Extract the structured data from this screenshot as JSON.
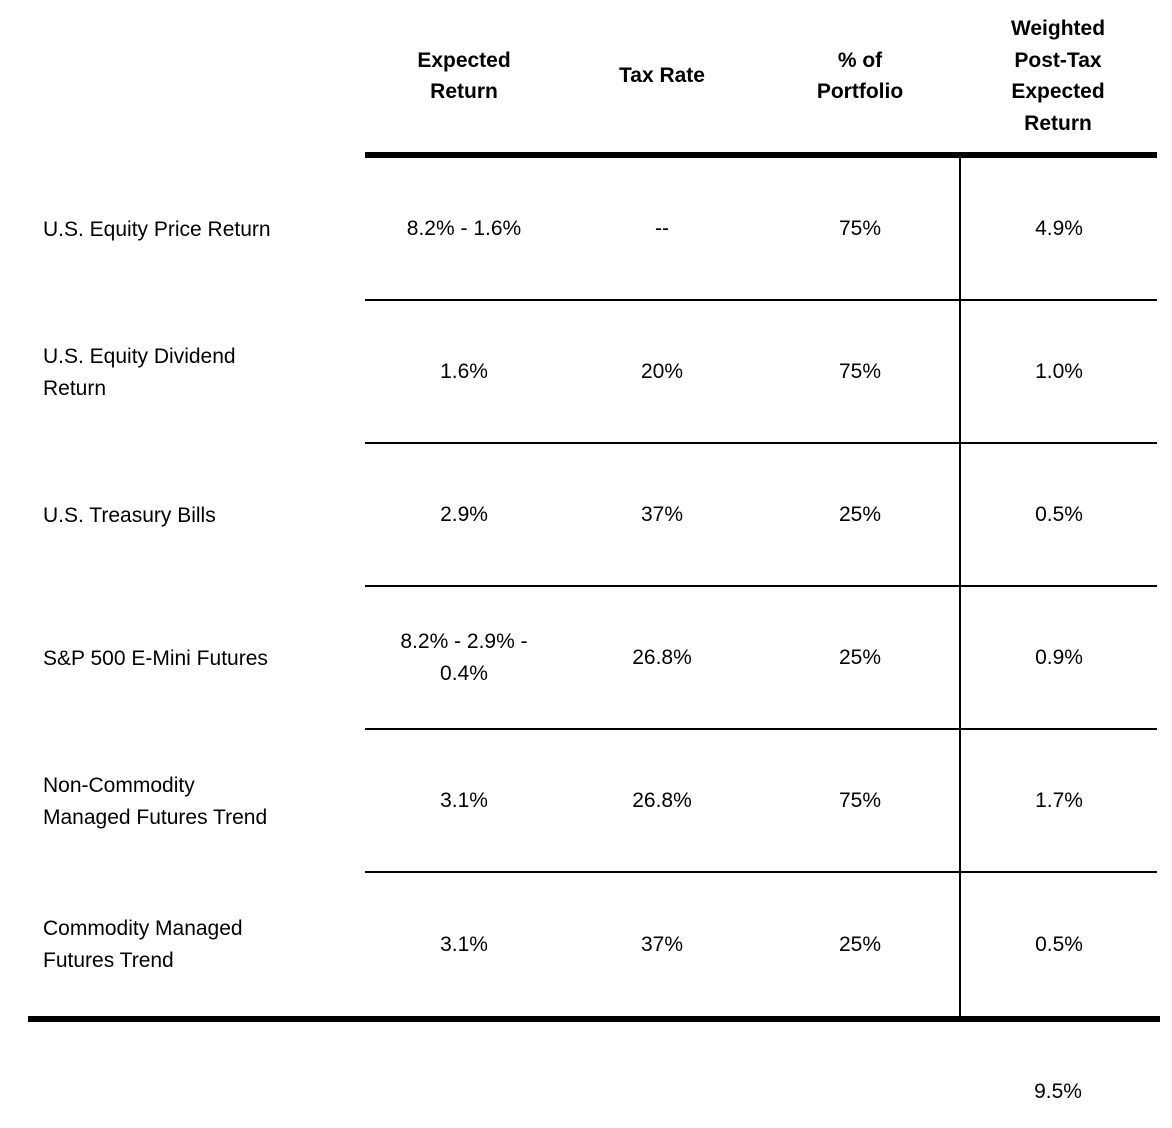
{
  "table": {
    "headers": [
      "Expected\nReturn",
      "Tax Rate",
      "% of\nPortfolio",
      "Weighted\nPost-Tax\nExpected\nReturn"
    ],
    "rows": [
      {
        "label": "U.S. Equity Price Return",
        "expected_return": "8.2% - 1.6%",
        "tax_rate": "--",
        "pct_of_portfolio": "75%",
        "weighted_post_tax_expected_return": "4.9%"
      },
      {
        "label": "U.S. Equity Dividend\nReturn",
        "expected_return": "1.6%",
        "tax_rate": "20%",
        "pct_of_portfolio": "75%",
        "weighted_post_tax_expected_return": "1.0%"
      },
      {
        "label": "U.S. Treasury Bills",
        "expected_return": "2.9%",
        "tax_rate": "37%",
        "pct_of_portfolio": "25%",
        "weighted_post_tax_expected_return": "0.5%"
      },
      {
        "label": "S&P 500 E-Mini Futures",
        "expected_return": "8.2% - 2.9% -\n0.4%",
        "tax_rate": "26.8%",
        "pct_of_portfolio": "25%",
        "weighted_post_tax_expected_return": "0.9%"
      },
      {
        "label": "Non-Commodity\nManaged Futures Trend",
        "expected_return": "3.1%",
        "tax_rate": "26.8%",
        "pct_of_portfolio": "75%",
        "weighted_post_tax_expected_return": "1.7%"
      },
      {
        "label": "Commodity Managed\nFutures Trend",
        "expected_return": "3.1%",
        "tax_rate": "37%",
        "pct_of_portfolio": "25%",
        "weighted_post_tax_expected_return": "0.5%"
      }
    ],
    "total_weighted_post_tax_expected_return": "9.5%"
  },
  "chart_data": {
    "type": "table",
    "columns": [
      "",
      "Expected Return",
      "Tax Rate",
      "% of Portfolio",
      "Weighted Post-Tax Expected Return"
    ],
    "rows": [
      [
        "U.S. Equity Price Return",
        "8.2% - 1.6%",
        "--",
        "75%",
        "4.9%"
      ],
      [
        "U.S. Equity Dividend Return",
        "1.6%",
        "20%",
        "75%",
        "1.0%"
      ],
      [
        "U.S. Treasury Bills",
        "2.9%",
        "37%",
        "25%",
        "0.5%"
      ],
      [
        "S&P 500 E-Mini Futures",
        "8.2% - 2.9% - 0.4%",
        "26.8%",
        "25%",
        "0.9%"
      ],
      [
        "Non-Commodity Managed Futures Trend",
        "3.1%",
        "26.8%",
        "75%",
        "1.7%"
      ],
      [
        "Commodity Managed Futures Trend",
        "3.1%",
        "37%",
        "25%",
        "0.5%"
      ]
    ],
    "total_weighted_post_tax_expected_return": "9.5%"
  },
  "colors": {
    "background": "#ffffff",
    "text": "#000000",
    "rule": "#000000"
  }
}
